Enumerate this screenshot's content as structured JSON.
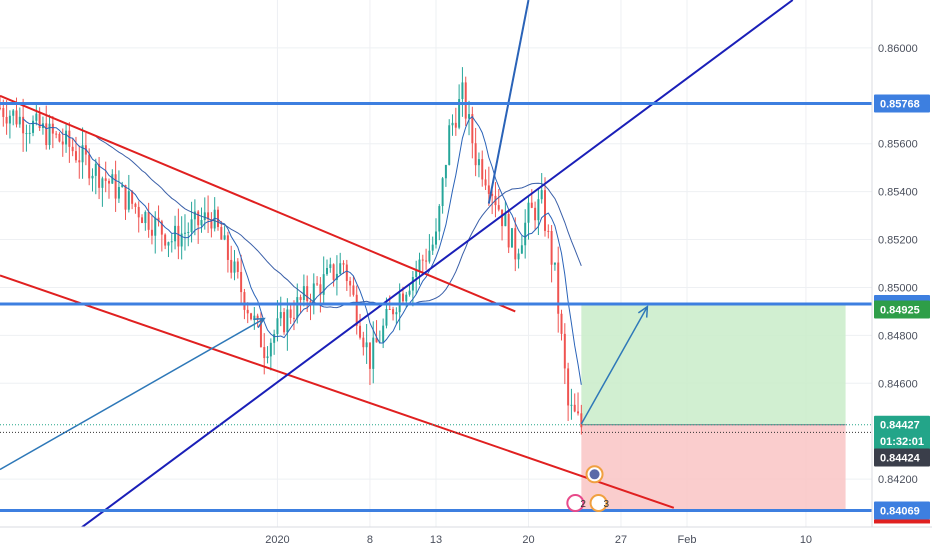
{
  "chart_data": {
    "type": "candlestick",
    "symbol_currency_pair": "",
    "ylim": [
      0.84,
      0.862
    ],
    "xlim_days": [
      "2019-12-11",
      "2020-02-15"
    ],
    "x_ticks": [
      {
        "label": "2020",
        "date": "2020-01-01"
      },
      {
        "label": "8",
        "date": "2020-01-08"
      },
      {
        "label": "13",
        "date": "2020-01-13"
      },
      {
        "label": "20",
        "date": "2020-01-20"
      },
      {
        "label": "27",
        "date": "2020-01-27"
      },
      {
        "label": "Feb",
        "date": "2020-02-01"
      },
      {
        "label": "10",
        "date": "2020-02-10"
      }
    ],
    "y_ticks": [
      "0.86000",
      "0.85600",
      "0.85400",
      "0.85200",
      "0.85000",
      "0.84800",
      "0.84600",
      "0.84200"
    ],
    "price_tags": [
      {
        "value": "0.85768",
        "price": 0.85768,
        "color": "#3d7fe0"
      },
      {
        "value": "0.84931",
        "price": 0.84931,
        "color": "#3d7fe0"
      },
      {
        "value": "0.84925",
        "price": 0.84908,
        "color": "#2e9e48"
      },
      {
        "value": "0.84427",
        "price": 0.84427,
        "color": "#23a589"
      },
      {
        "value": "01:32:01",
        "price": 0.8436,
        "color": "#23a589"
      },
      {
        "value": "0.84424",
        "price": 0.8429,
        "color": "#3a3e4a"
      },
      {
        "value": "0.84069",
        "price": 0.84069,
        "color": "#3d7fe0"
      }
    ],
    "horizontal_levels": [
      0.85768,
      0.84931,
      0.84069
    ],
    "position": {
      "entry": 0.84427,
      "target": 0.84925,
      "stop": 0.84069,
      "start_date": "2020-01-24",
      "end_date": "2020-02-13"
    },
    "candles_hint": {
      "start_date": "2019-12-11",
      "end_date": "2020-01-24",
      "anchor_closes": [
        [
          "2019-12-11",
          0.8575
        ],
        [
          "2019-12-16",
          0.856
        ],
        [
          "2019-12-20",
          0.854
        ],
        [
          "2019-12-24",
          0.852
        ],
        [
          "2019-12-27",
          0.853
        ],
        [
          "2019-12-31",
          0.8475
        ],
        [
          "2020-01-02",
          0.849
        ],
        [
          "2020-01-06",
          0.851
        ],
        [
          "2020-01-08",
          0.847
        ],
        [
          "2020-01-10",
          0.8495
        ],
        [
          "2020-01-13",
          0.852
        ],
        [
          "2020-01-14",
          0.8565
        ],
        [
          "2020-01-15",
          0.858
        ],
        [
          "2020-01-16",
          0.8555
        ],
        [
          "2020-01-17",
          0.8545
        ],
        [
          "2020-01-18",
          0.853
        ],
        [
          "2020-01-19",
          0.8515
        ],
        [
          "2020-01-20",
          0.853
        ],
        [
          "2020-01-21",
          0.8535
        ],
        [
          "2020-01-22",
          0.8505
        ],
        [
          "2020-01-23",
          0.845
        ],
        [
          "2020-01-24",
          0.8442
        ]
      ]
    },
    "event_badges": [
      {
        "label": "2",
        "date": "2020-01-24"
      },
      {
        "label": "3",
        "date": "2020-01-25"
      }
    ]
  }
}
